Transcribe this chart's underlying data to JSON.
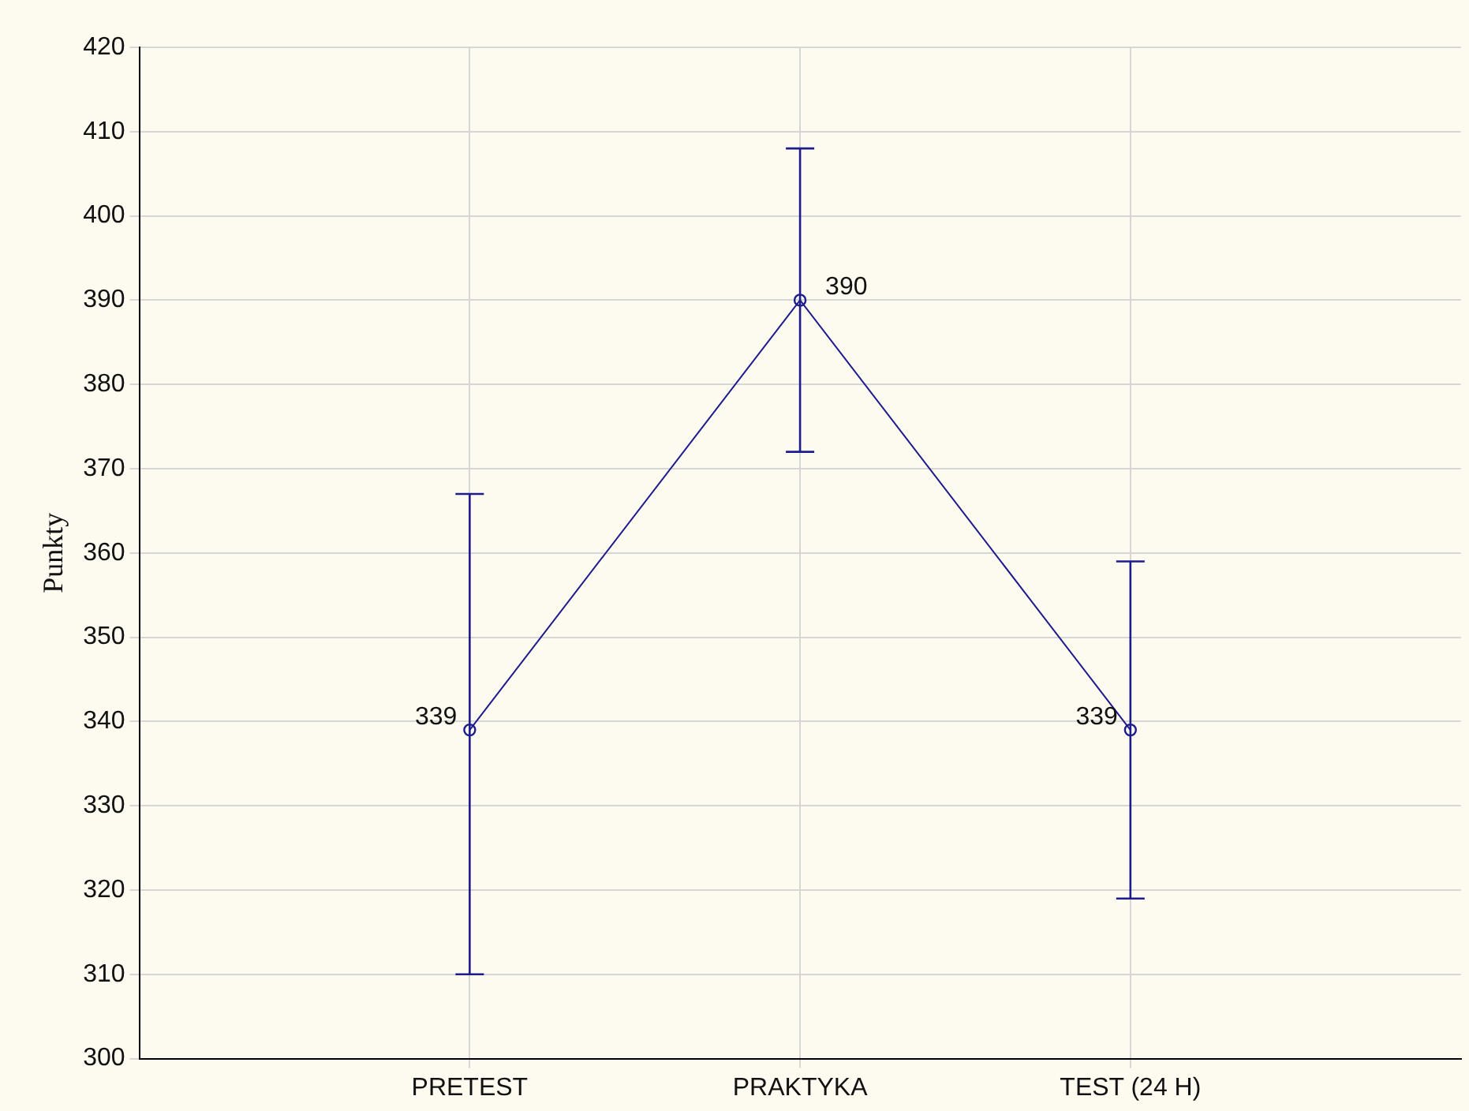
{
  "chart_data": {
    "type": "line",
    "ylabel": "Punkty",
    "categories": [
      "PRETEST",
      "PRAKTYKA",
      "TEST (24 H)"
    ],
    "series": [
      {
        "color": "#1c1c8c",
        "values": [
          339,
          390,
          339
        ],
        "errors": [
          [
            310,
            367
          ],
          [
            372,
            408
          ],
          [
            319,
            359
          ]
        ]
      }
    ],
    "ylim": [
      300,
      420
    ],
    "yticks": [
      300,
      310,
      320,
      330,
      340,
      350,
      360,
      370,
      380,
      390,
      400,
      410,
      420
    ],
    "grid": true,
    "marker": "circle",
    "data_labels": true,
    "legend": false
  }
}
